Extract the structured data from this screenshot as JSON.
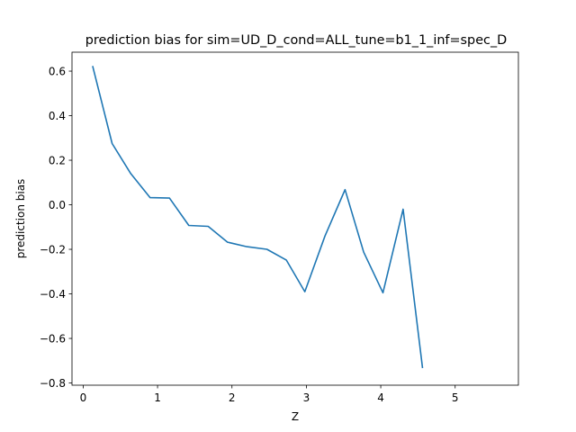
{
  "chart_data": {
    "type": "line",
    "title": "prediction bias for sim=UD_D_cond=ALL_tune=b1_1_inf=spec_D",
    "xlabel": "Z",
    "ylabel": "prediction bias",
    "xlim": [
      -0.15,
      5.85
    ],
    "ylim": [
      -0.81,
      0.685
    ],
    "xticks": [
      0,
      1,
      2,
      3,
      4,
      5
    ],
    "yticks": [
      -0.8,
      -0.6,
      -0.4,
      -0.2,
      0.0,
      0.2,
      0.4,
      0.6
    ],
    "xtick_labels": [
      "0",
      "1",
      "2",
      "3",
      "4",
      "5"
    ],
    "ytick_labels": [
      "−0.8",
      "−0.6",
      "−0.4",
      "−0.2",
      "0.0",
      "0.2",
      "0.4",
      "0.6"
    ],
    "grid": false,
    "legend": "none",
    "series": [
      {
        "color": "#1f77b4",
        "x": [
          0.13,
          0.39,
          0.64,
          0.9,
          1.16,
          1.42,
          1.68,
          1.94,
          2.2,
          2.47,
          2.73,
          2.98,
          3.25,
          3.52,
          3.77,
          4.03,
          4.3,
          4.56
        ],
        "y": [
          0.62,
          0.275,
          0.14,
          0.032,
          0.03,
          -0.093,
          -0.097,
          -0.168,
          -0.188,
          -0.2,
          -0.248,
          -0.39,
          -0.14,
          0.068,
          -0.213,
          -0.395,
          -0.02,
          -0.73
        ]
      }
    ]
  }
}
